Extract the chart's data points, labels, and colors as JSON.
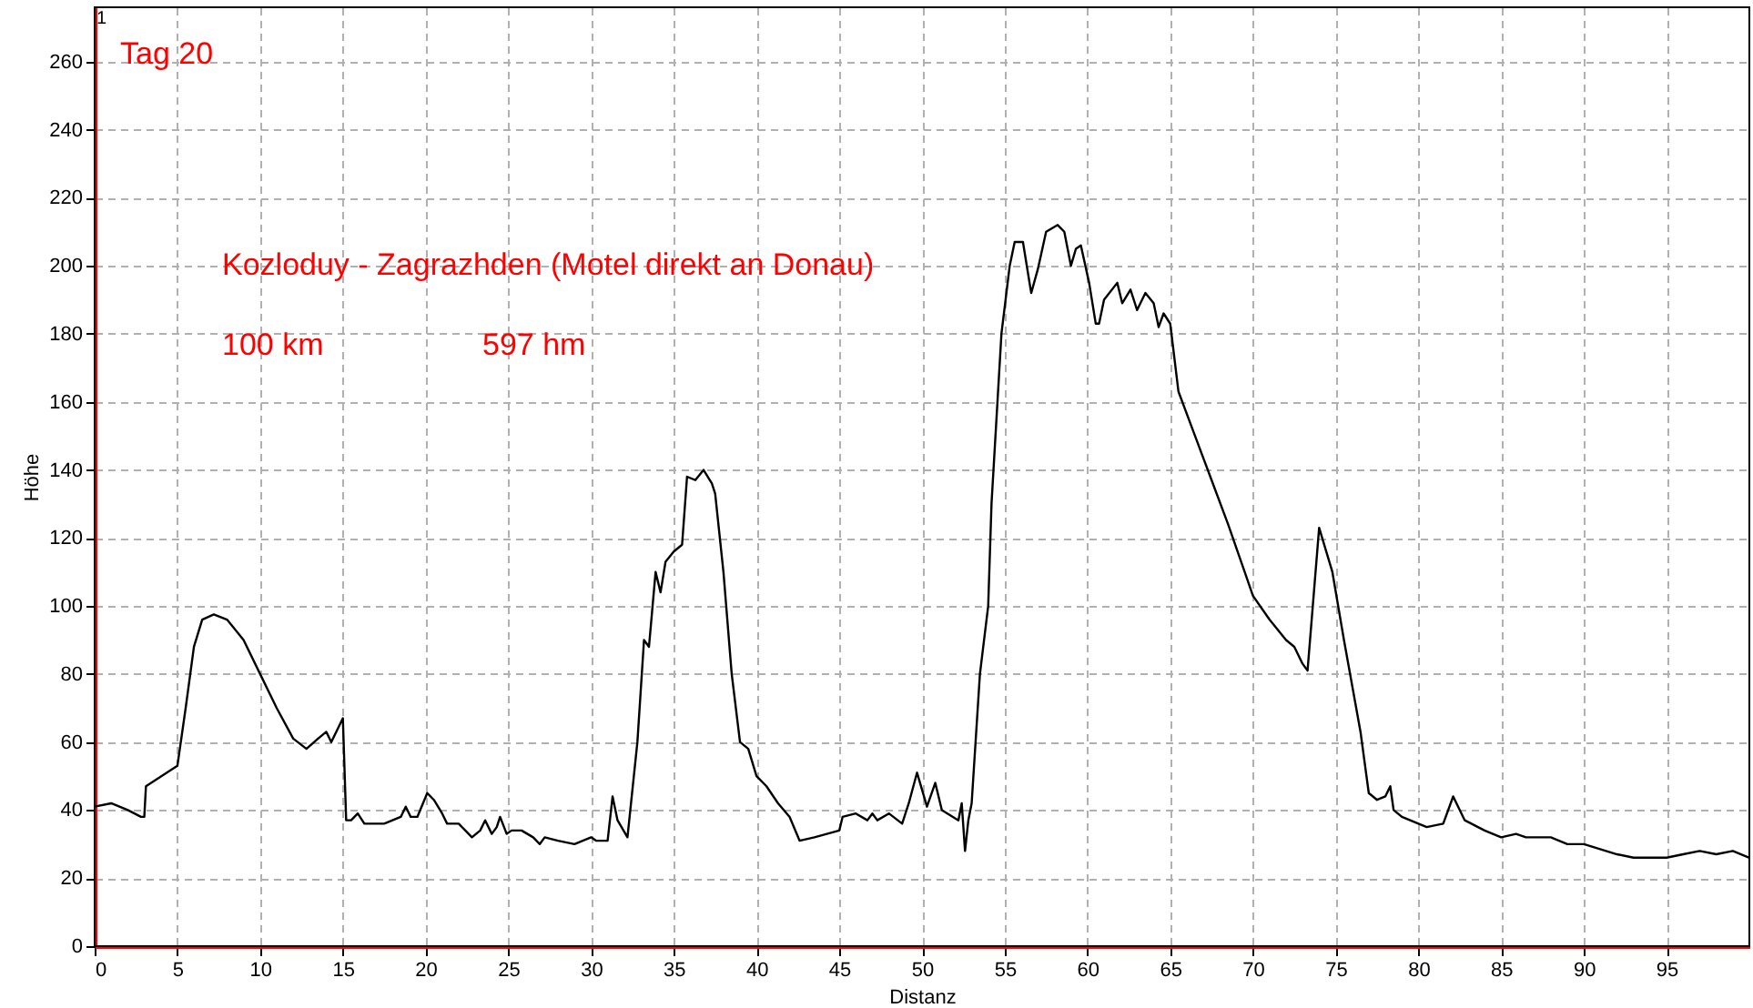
{
  "chart_data": {
    "type": "line",
    "xlabel": "Distanz",
    "ylabel": "Höhe",
    "annotations": [
      "1",
      "Tag 20",
      "Kozloduy - Zagrazhden (Motel direkt an Donau)",
      "100 km",
      "597 hm"
    ],
    "xlim": [
      0,
      100
    ],
    "ylim": [
      0,
      276
    ],
    "xticks": [
      0,
      5,
      10,
      15,
      20,
      25,
      30,
      35,
      40,
      45,
      50,
      55,
      60,
      65,
      70,
      75,
      80,
      85,
      90,
      95
    ],
    "yticks": [
      0,
      20,
      40,
      60,
      80,
      100,
      120,
      140,
      160,
      180,
      200,
      220,
      240,
      260
    ],
    "grid": true,
    "marker": "none",
    "line_style": "solid",
    "series": [
      {
        "color": "#000000",
        "x": [
          0,
          1,
          2,
          2.8,
          3,
          3.1,
          5,
          5.5,
          6,
          6.5,
          7.2,
          8,
          9,
          10,
          11,
          12,
          12.8,
          13.5,
          14,
          14.3,
          15,
          15.2,
          15.5,
          15.9,
          16.3,
          17.5,
          18.5,
          18.8,
          19.1,
          19.5,
          20.1,
          20.5,
          21,
          21.3,
          22,
          22.8,
          23.3,
          23.6,
          24,
          24.3,
          24.5,
          24.9,
          25.2,
          25.8,
          26.5,
          26.9,
          27.2,
          28,
          29,
          30,
          30.3,
          31,
          31.3,
          31.6,
          32.2,
          32.8,
          33.2,
          33.5,
          33.9,
          34.2,
          34.5,
          35,
          35.5,
          35.8,
          36.3,
          36.8,
          37.3,
          37.5,
          38,
          38.5,
          39,
          39.5,
          40,
          40.6,
          41.3,
          42,
          42.6,
          43.5,
          45,
          45.2,
          46,
          46.7,
          47,
          47.3,
          48,
          48.8,
          49.2,
          49.7,
          50.3,
          50.8,
          51.2,
          52.2,
          52.4,
          52.6,
          52.8,
          53,
          53.5,
          54,
          54.2,
          54.8,
          55.3,
          55.6,
          56.1,
          56.6,
          57,
          57.5,
          58.2,
          58.6,
          59,
          59.3,
          59.6,
          60.1,
          60.5,
          60.7,
          61,
          61.8,
          62.1,
          62.6,
          63,
          63.5,
          64,
          64.3,
          64.6,
          65,
          65.5,
          66.5,
          67.5,
          68.5,
          69.5,
          70,
          71,
          72,
          72.5,
          73,
          73.3,
          74,
          74.8,
          75.5,
          76.5,
          77,
          77.5,
          78,
          78.3,
          78.5,
          79,
          80,
          80.5,
          81.5,
          82.1,
          82.8,
          84,
          85,
          85.9,
          86.5,
          88,
          89,
          90,
          92,
          93,
          95,
          96,
          97,
          98,
          99,
          100
        ],
        "values": [
          41,
          42,
          40,
          38,
          38,
          47,
          53,
          70,
          88,
          96,
          97.5,
          96,
          90,
          80,
          70,
          61,
          58,
          61,
          63,
          60,
          67,
          37,
          37,
          39,
          36,
          36,
          38,
          41,
          38,
          38,
          45,
          43,
          39,
          36,
          36,
          32,
          34,
          37,
          33,
          35,
          38,
          33,
          34,
          34,
          32,
          30,
          32,
          31,
          30,
          32,
          31,
          31,
          44,
          37,
          32,
          60,
          90,
          88,
          110,
          104,
          113,
          116,
          118,
          138,
          137,
          140,
          136,
          133,
          110,
          80,
          60,
          58,
          50,
          47,
          42,
          38,
          31,
          32,
          34,
          38,
          39,
          37,
          39,
          37,
          39,
          36,
          42,
          51,
          41,
          48,
          40,
          37,
          42,
          28,
          37,
          42,
          80,
          100,
          130,
          180,
          200,
          207,
          207,
          192,
          199,
          210,
          212,
          210,
          200,
          205,
          206,
          195,
          183,
          183,
          190,
          195,
          189,
          193,
          187,
          192,
          189,
          182,
          186,
          183,
          163,
          150,
          137,
          124,
          110,
          103,
          96,
          90,
          88,
          83,
          81,
          123,
          110,
          90,
          63,
          45,
          43,
          44,
          47,
          40,
          38,
          36,
          35,
          36,
          44,
          37,
          34,
          32,
          33,
          32,
          32,
          30,
          30,
          27,
          26,
          26,
          27,
          28,
          27,
          28,
          26
        ]
      }
    ]
  }
}
